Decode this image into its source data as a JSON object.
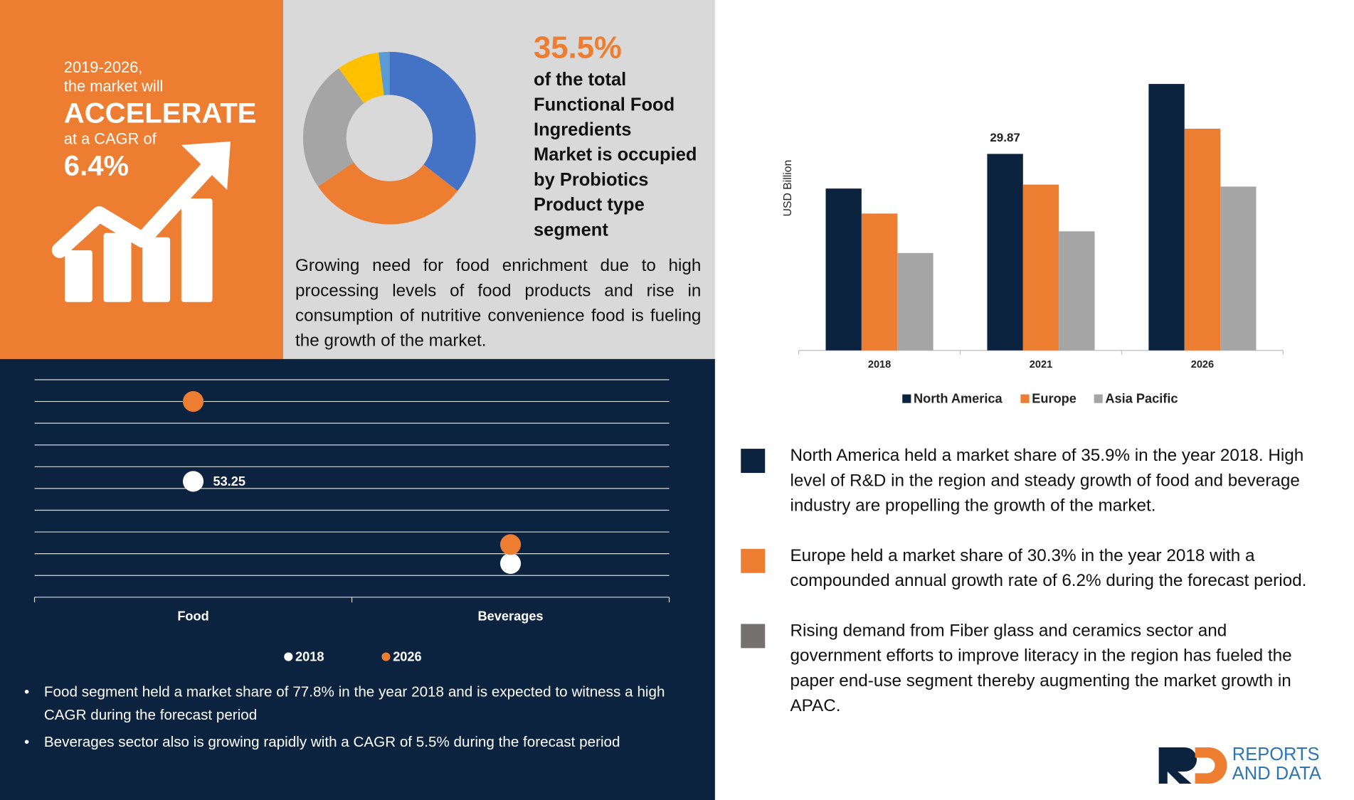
{
  "panels": {
    "cagr": {
      "period": "2019-2026,",
      "line2": "the market will",
      "headline": "ACCELERATE",
      "line4": "at a CAGR of",
      "value": "6.4%"
    },
    "donut_caption": [
      "of the total",
      "Functional Food",
      "Ingredients",
      "Market is occupied",
      "by Probiotics",
      "Product type",
      "segment"
    ],
    "growth_text": "Growing need for food enrichment due to high processing levels of food products and rise in consumption of nutritive convenience food is fueling the growth of the market.",
    "bullets": [
      "Food segment held a market share of 77.8% in the year 2018 and is expected to witness a high CAGR during the forecast period",
      "Beverages sector also is growing rapidly with a CAGR of 5.5% during the forecast period"
    ],
    "notes": [
      "North America held a market share of 35.9% in the year 2018. High level of R&D in the region and steady growth of food and beverage industry are propelling the growth of the market.",
      "Europe held a market share of 30.3% in the year 2018 with a compounded annual growth rate of 6.2% during the forecast period.",
      "Rising demand from Fiber glass and ceramics sector and government efforts to improve literacy in the region has fueled the  paper end-use segment  thereby augmenting the market growth in APAC."
    ],
    "logo": {
      "line1": "REPORTS",
      "line2": "AND DATA"
    }
  },
  "chart_data": [
    {
      "type": "donut",
      "values": [
        35.5,
        30,
        24.5,
        8,
        2
      ],
      "value_labels": [
        "35.5%",
        null,
        null,
        null,
        null
      ],
      "colors": [
        "#4472c4",
        "#ed7d31",
        "#a5a5a5",
        "#ffc000",
        "#5b9bd5"
      ]
    },
    {
      "type": "bar",
      "y_label": "USD Billion",
      "categories": [
        "2018",
        "2021",
        "2026"
      ],
      "ylim": [
        0,
        45
      ],
      "series": [
        {
          "name": "North America",
          "color": "#0c2340",
          "values": [
            24.6,
            29.87,
            40.5
          ]
        },
        {
          "name": "Europe",
          "color": "#ed7d31",
          "values": [
            20.8,
            25.2,
            33.7
          ]
        },
        {
          "name": "Asia Pacific",
          "color": "#a5a5a5",
          "values": [
            14.8,
            18.1,
            24.9
          ]
        }
      ]
    },
    {
      "type": "dot",
      "categories": [
        "Food",
        "Beverages"
      ],
      "ylim": [
        0,
        100
      ],
      "yticks": [
        10,
        20,
        30,
        40,
        50,
        60,
        70,
        80,
        90,
        100
      ],
      "grid": true,
      "series": [
        {
          "name": "2018",
          "color": "#ffffff",
          "values": [
            53.25,
            15.5
          ]
        },
        {
          "name": "2026",
          "color": "#ed7d31",
          "values": [
            90,
            24.2
          ]
        }
      ]
    }
  ]
}
